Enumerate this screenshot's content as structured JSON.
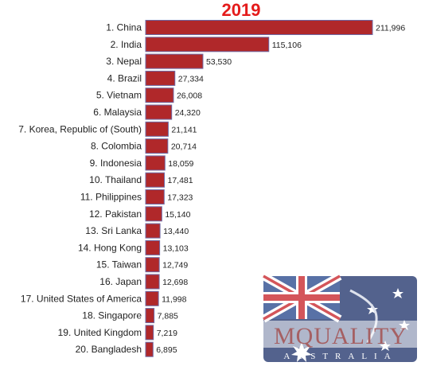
{
  "chart_data": {
    "type": "bar",
    "orientation": "horizontal",
    "title": "2019",
    "categories": [
      "1. China",
      "2. India",
      "3. Nepal",
      "4. Brazil",
      "5. Vietnam",
      "6. Malaysia",
      "7. Korea, Republic of (South)",
      "8. Colombia",
      "9. Indonesia",
      "10. Thailand",
      "11. Philippines",
      "12. Pakistan",
      "13. Sri Lanka",
      "14. Hong Kong",
      "15. Taiwan",
      "16. Japan",
      "17. United States of America",
      "18. Singapore",
      "19. United Kingdom",
      "20. Bangladesh"
    ],
    "values": [
      211996,
      115106,
      53530,
      27334,
      26008,
      24320,
      21141,
      20714,
      18059,
      17481,
      17323,
      15140,
      13440,
      13103,
      12749,
      12698,
      11998,
      7885,
      7219,
      6895
    ],
    "value_labels": [
      "211,996",
      "115,106",
      "53,530",
      "27,334",
      "26,008",
      "24,320",
      "21,141",
      "20,714",
      "18,059",
      "17,481",
      "17,323",
      "15,140",
      "13,440",
      "13,103",
      "12,749",
      "12,698",
      "11,998",
      "7,885",
      "7,219",
      "6,895"
    ],
    "xlim": [
      0,
      211996
    ],
    "grid": false,
    "bar_color": "#b0282a",
    "bar_border_color": "#6e6aa6"
  },
  "watermark": {
    "text": "MQUALITY",
    "subtext": "AUSTRALIA",
    "icon": "australian-flag-icon"
  }
}
